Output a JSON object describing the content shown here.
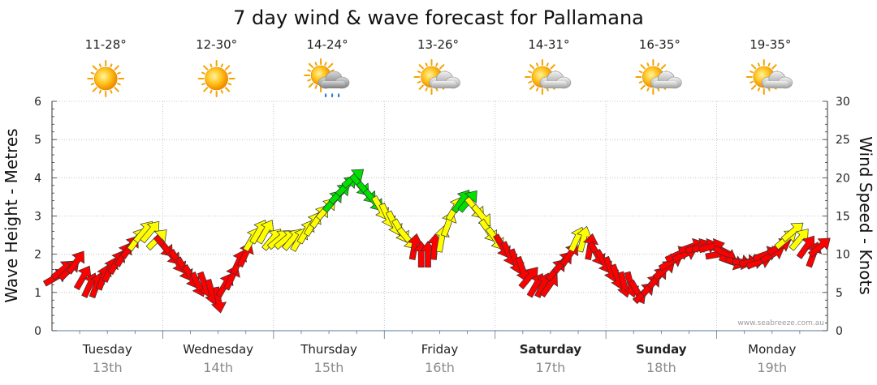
{
  "chart_data": {
    "type": "wind-vector",
    "title": "7 day wind & wave forecast for Pallamana",
    "ylabel_left": "Wave Height - Metres",
    "ylabel_right": "Wind Speed - Knots",
    "ylim_left": [
      0,
      6
    ],
    "ylim_right": [
      0,
      30
    ],
    "yticks_left": [
      "0",
      "1",
      "2",
      "3",
      "4",
      "5",
      "6"
    ],
    "yticks_right": [
      "0",
      "5",
      "10",
      "15",
      "20",
      "25",
      "30"
    ],
    "days": [
      {
        "name": "Tuesday",
        "date": "13th",
        "temp": "11-28°",
        "weather": "sunny",
        "weekend": false
      },
      {
        "name": "Wednesday",
        "date": "14th",
        "temp": "12-30°",
        "weather": "sunny",
        "weekend": false
      },
      {
        "name": "Thursday",
        "date": "15th",
        "temp": "14-24°",
        "weather": "showers",
        "weekend": false
      },
      {
        "name": "Friday",
        "date": "16th",
        "temp": "13-26°",
        "weather": "partly-cloudy",
        "weekend": false
      },
      {
        "name": "Saturday",
        "date": "17th",
        "temp": "14-31°",
        "weather": "partly-cloudy",
        "weekend": true
      },
      {
        "name": "Sunday",
        "date": "18th",
        "temp": "16-35°",
        "weather": "partly-cloudy",
        "weekend": true
      },
      {
        "name": "Monday",
        "date": "19th",
        "temp": "19-35°",
        "weather": "partly-cloudy",
        "weekend": false
      }
    ],
    "wind_colors": {
      "low": "#ff0000",
      "mid": "#ffff00",
      "high": "#00e000"
    },
    "wind_knots": [
      7,
      8,
      8,
      9,
      7,
      6,
      6,
      7,
      8,
      9,
      10,
      11,
      12,
      13,
      13,
      12,
      11,
      10,
      9,
      8,
      7,
      6,
      6,
      5,
      4,
      6,
      7,
      9,
      10,
      12,
      13,
      13,
      12,
      12,
      12,
      12,
      12,
      13,
      14,
      15,
      16,
      17,
      18,
      19,
      20,
      19,
      18,
      17,
      16,
      15,
      14,
      13,
      12,
      11,
      10,
      10,
      11,
      12,
      14,
      16,
      17,
      17,
      16,
      15,
      13,
      12,
      11,
      10,
      9,
      8,
      7,
      6,
      6,
      6,
      8,
      9,
      10,
      12,
      12,
      11,
      10,
      9,
      8,
      7,
      6,
      6,
      5,
      5,
      6,
      7,
      8,
      9,
      10,
      10,
      11,
      11,
      11,
      11,
      10,
      10,
      9,
      9,
      9,
      9,
      9,
      10,
      10,
      11,
      12,
      13,
      12,
      11,
      10,
      11
    ],
    "wind_dir_deg": [
      240,
      230,
      225,
      215,
      210,
      205,
      200,
      200,
      205,
      210,
      210,
      215,
      215,
      220,
      220,
      225,
      320,
      320,
      330,
      330,
      330,
      335,
      340,
      345,
      350,
      210,
      205,
      205,
      205,
      210,
      210,
      210,
      220,
      230,
      230,
      220,
      210,
      210,
      210,
      215,
      220,
      220,
      225,
      225,
      230,
      320,
      320,
      320,
      330,
      335,
      335,
      330,
      320,
      190,
      180,
      180,
      185,
      190,
      200,
      210,
      215,
      220,
      320,
      320,
      325,
      325,
      330,
      335,
      340,
      340,
      220,
      210,
      205,
      215,
      220,
      220,
      215,
      205,
      195,
      190,
      330,
      330,
      340,
      340,
      345,
      345,
      330,
      225,
      220,
      220,
      230,
      240,
      245,
      245,
      250,
      250,
      255,
      255,
      260,
      300,
      290,
      280,
      270,
      260,
      250,
      250,
      240,
      240,
      230,
      230,
      220,
      215,
      200,
      230
    ],
    "source_credit": "www.seabreeze.com.au"
  }
}
